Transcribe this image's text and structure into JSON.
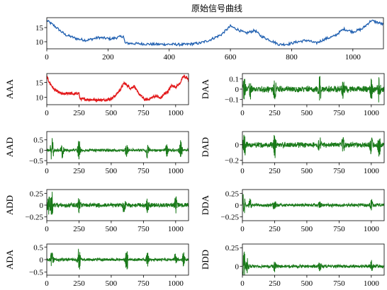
{
  "chart_data": [
    {
      "name": "original",
      "type": "line",
      "title": "原始信号曲线",
      "ylabel": "",
      "color": "#1f5fb0",
      "xlim": [
        0,
        1100
      ],
      "ylim": [
        7.5,
        18.5
      ],
      "xticks": [
        0,
        200,
        400,
        600,
        800,
        1000
      ],
      "yticks": [
        10,
        15
      ],
      "x": [
        0,
        20,
        60,
        100,
        130,
        170,
        210,
        250,
        256,
        300,
        350,
        400,
        450,
        500,
        530,
        570,
        600,
        620,
        650,
        680,
        700,
        730,
        760,
        790,
        820,
        850,
        880,
        910,
        940,
        970,
        1000,
        1030,
        1060,
        1090,
        1100
      ],
      "values": [
        17.5,
        16.0,
        12.5,
        11.0,
        10.5,
        11.5,
        11.0,
        12.0,
        9.5,
        9.3,
        9.1,
        9.1,
        9.0,
        9.5,
        10.5,
        12.5,
        15.5,
        14.5,
        13.0,
        14.0,
        12.0,
        10.5,
        9.0,
        9.2,
        10.0,
        10.5,
        9.5,
        11.0,
        12.0,
        14.5,
        13.5,
        14.5,
        17.5,
        16.5,
        16.0
      ]
    },
    {
      "name": "AAA",
      "type": "line",
      "ylabel": "AAA",
      "color": "#e31a1c",
      "xlim": [
        0,
        1100
      ],
      "ylim": [
        7.5,
        18.0
      ],
      "xticks": [
        0,
        250,
        500,
        750,
        1000
      ],
      "yticks": [
        10,
        15
      ],
      "x": [
        0,
        20,
        60,
        100,
        130,
        170,
        210,
        250,
        256,
        300,
        350,
        400,
        450,
        500,
        530,
        570,
        600,
        620,
        650,
        680,
        700,
        730,
        760,
        790,
        820,
        850,
        880,
        910,
        940,
        970,
        1000,
        1030,
        1060,
        1090,
        1100
      ],
      "values": [
        17.0,
        15.0,
        12.5,
        11.5,
        11.0,
        11.5,
        11.0,
        11.5,
        9.5,
        9.3,
        9.2,
        9.1,
        9.1,
        9.5,
        10.5,
        12.5,
        14.8,
        14.2,
        13.0,
        13.8,
        12.0,
        10.5,
        9.2,
        9.3,
        10.0,
        10.5,
        9.6,
        11.0,
        12.0,
        14.0,
        13.5,
        14.5,
        17.0,
        16.5,
        15.5
      ]
    },
    {
      "name": "DAA",
      "type": "line",
      "ylabel": "DAA",
      "color": "#1a7a1a",
      "xlim": [
        0,
        1100
      ],
      "ylim": [
        -0.15,
        0.15
      ],
      "xticks": [
        0,
        250,
        500,
        750,
        1000
      ],
      "yticks": [
        -0.1,
        0.0,
        0.1
      ],
      "base_amplitude": 0.025,
      "bursts": [
        {
          "x": 15,
          "amp": 0.12
        },
        {
          "x": 60,
          "amp": 0.08
        },
        {
          "x": 250,
          "amp": 0.1
        },
        {
          "x": 600,
          "amp": 0.12
        },
        {
          "x": 780,
          "amp": 0.09
        },
        {
          "x": 1000,
          "amp": 0.1
        },
        {
          "x": 1060,
          "amp": 0.12
        }
      ]
    },
    {
      "name": "AAD",
      "type": "line",
      "ylabel": "AAD",
      "color": "#1a7a1a",
      "xlim": [
        0,
        1100
      ],
      "ylim": [
        -0.6,
        0.9
      ],
      "xticks": [
        0,
        250,
        500,
        750,
        1000
      ],
      "yticks": [
        -0.5,
        0.0,
        0.5
      ],
      "base_amplitude": 0.06,
      "bursts": [
        {
          "x": 40,
          "amp": 0.8
        },
        {
          "x": 120,
          "amp": 0.4
        },
        {
          "x": 250,
          "amp": 0.55
        },
        {
          "x": 620,
          "amp": 0.4
        },
        {
          "x": 780,
          "amp": 0.35
        },
        {
          "x": 930,
          "amp": 0.35
        },
        {
          "x": 1040,
          "amp": 0.45
        }
      ]
    },
    {
      "name": "DAD",
      "type": "line",
      "ylabel": "DAD",
      "color": "#1a7a1a",
      "xlim": [
        0,
        1100
      ],
      "ylim": [
        -0.23,
        0.17
      ],
      "xticks": [
        0,
        250,
        500,
        750,
        1000
      ],
      "yticks": [
        -0.2,
        0.0
      ],
      "base_amplitude": 0.03,
      "bursts": [
        {
          "x": 15,
          "amp": 0.15
        },
        {
          "x": 250,
          "amp": 0.17
        },
        {
          "x": 600,
          "amp": 0.13
        },
        {
          "x": 780,
          "amp": 0.1
        },
        {
          "x": 1000,
          "amp": 0.13
        },
        {
          "x": 1060,
          "amp": 0.15
        }
      ]
    },
    {
      "name": "ADD",
      "type": "line",
      "ylabel": "ADD",
      "color": "#1a7a1a",
      "xlim": [
        0,
        1100
      ],
      "ylim": [
        -0.33,
        0.33
      ],
      "xticks": [
        0,
        250,
        500,
        750,
        1000
      ],
      "yticks": [
        -0.25,
        0.0,
        0.25
      ],
      "base_amplitude": 0.04,
      "bursts": [
        {
          "x": 15,
          "amp": 0.2
        },
        {
          "x": 40,
          "amp": 0.3
        },
        {
          "x": 250,
          "amp": 0.18
        },
        {
          "x": 600,
          "amp": 0.17
        },
        {
          "x": 780,
          "amp": 0.15
        },
        {
          "x": 1000,
          "amp": 0.18
        }
      ]
    },
    {
      "name": "DDA",
      "type": "line",
      "ylabel": "DDA",
      "color": "#1a7a1a",
      "xlim": [
        0,
        1100
      ],
      "ylim": [
        -0.33,
        0.33
      ],
      "xticks": [
        0,
        250,
        500,
        750,
        1000
      ],
      "yticks": [
        -0.25,
        0.0,
        0.25
      ],
      "base_amplitude": 0.03,
      "bursts": [
        {
          "x": 10,
          "amp": 0.32
        },
        {
          "x": 60,
          "amp": 0.15
        },
        {
          "x": 250,
          "amp": 0.12
        },
        {
          "x": 600,
          "amp": 0.1
        },
        {
          "x": 1000,
          "amp": 0.12
        }
      ]
    },
    {
      "name": "ADA",
      "type": "line",
      "ylabel": "ADA",
      "color": "#1a7a1a",
      "xlim": [
        0,
        1100
      ],
      "ylim": [
        -0.62,
        0.62
      ],
      "xticks": [
        0,
        250,
        500,
        750,
        1000
      ],
      "yticks": [
        -0.5,
        0.0,
        0.5
      ],
      "base_amplitude": 0.05,
      "bursts": [
        {
          "x": 40,
          "amp": 0.35
        },
        {
          "x": 250,
          "amp": 0.55
        },
        {
          "x": 620,
          "amp": 0.5
        },
        {
          "x": 780,
          "amp": 0.3
        },
        {
          "x": 1000,
          "amp": 0.3
        },
        {
          "x": 1060,
          "amp": 0.4
        }
      ]
    },
    {
      "name": "DDD",
      "type": "line",
      "ylabel": "DDD",
      "color": "#1a7a1a",
      "xlim": [
        0,
        1100
      ],
      "ylim": [
        -0.12,
        0.3
      ],
      "xticks": [
        0,
        250,
        500,
        750,
        1000
      ],
      "yticks": [
        0.0,
        0.25
      ],
      "base_amplitude": 0.02,
      "bursts": [
        {
          "x": 10,
          "amp": 0.28
        },
        {
          "x": 40,
          "amp": 0.1
        },
        {
          "x": 250,
          "amp": 0.08
        },
        {
          "x": 600,
          "amp": 0.06
        },
        {
          "x": 1000,
          "amp": 0.08
        }
      ]
    }
  ]
}
